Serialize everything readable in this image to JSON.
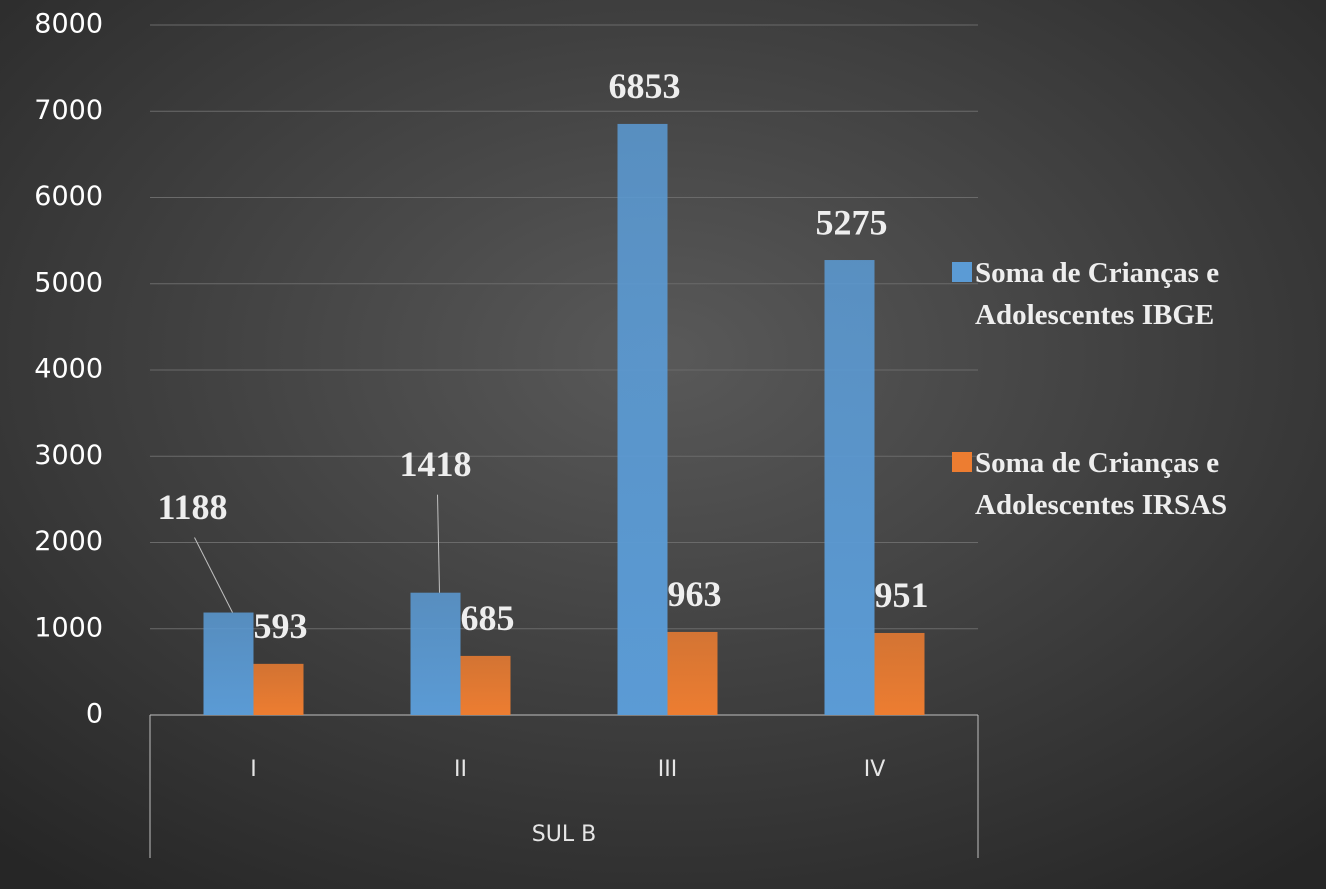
{
  "chart_data": {
    "type": "bar",
    "categories": [
      "I",
      "II",
      "III",
      "IV"
    ],
    "group_label": "SUL B",
    "series": [
      {
        "name": "Soma de Crianças e Adolescentes IBGE",
        "color": "#5b9bd5",
        "values": [
          1188,
          1418,
          6853,
          5275
        ]
      },
      {
        "name": "Soma de Crianças e Adolescentes IRSAS",
        "color": "#ed7d31",
        "values": [
          593,
          685,
          963,
          951
        ]
      }
    ],
    "ylim": [
      0,
      8000
    ],
    "yticks": [
      0,
      1000,
      2000,
      3000,
      4000,
      5000,
      6000,
      7000,
      8000
    ],
    "grid": true,
    "legend": "right",
    "data_labels": true
  }
}
